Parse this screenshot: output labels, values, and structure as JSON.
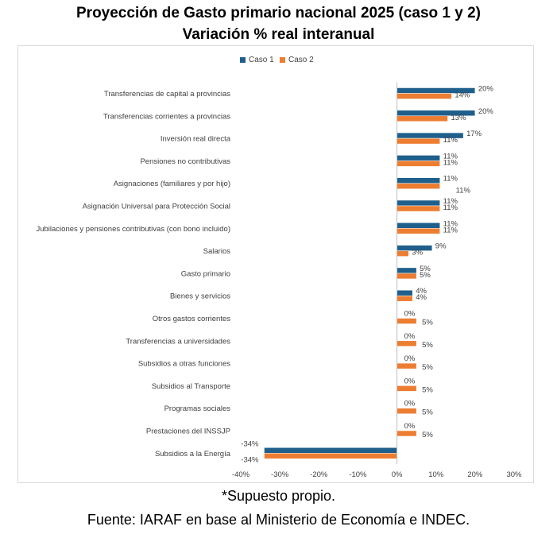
{
  "chart_data": {
    "type": "bar",
    "orientation": "horizontal",
    "title": "Proyección de Gasto primario nacional 2025 (caso 1 y 2)",
    "subtitle": "Variación % real interanual",
    "categories": [
      "Transferencias de capital a provincias",
      "Transferencias corrientes a provincias",
      "Inversión real directa",
      "Pensiones no contributivas",
      "Asignaciones (familiares y por hijo)",
      "Asignación Universal para Protección Social",
      "Jubilaciones y pensiones contributivas (con bono incluido)",
      "Salarios",
      "Gasto primario",
      "Bienes y servicios",
      "Otros gastos corrientes",
      "Transferencias a universidades",
      "Subsidios a otras funciones",
      "Subsidios al Transporte",
      "Programas sociales",
      "Prestaciones del INSSJP",
      "Subsidios a la Energía"
    ],
    "series": [
      {
        "name": "Caso 1",
        "color": "#1f5f8b",
        "values": [
          20,
          20,
          17,
          11,
          11,
          11,
          11,
          9,
          5,
          4,
          0,
          0,
          0,
          0,
          0,
          0,
          -34
        ],
        "labels": [
          "20%",
          "20%",
          "17%",
          "11%",
          "11%",
          "11%",
          "11%",
          "9%",
          "5%",
          "4%",
          "0%",
          "0%",
          "0%",
          "0%",
          "0%",
          "0%",
          "-34%"
        ]
      },
      {
        "name": "Caso 2",
        "color": "#ed7d31",
        "values": [
          14,
          13,
          11,
          11,
          11,
          11,
          11,
          3,
          5,
          4,
          5,
          5,
          5,
          5,
          5,
          5,
          -34
        ],
        "labels": [
          "14%",
          "13%",
          "11%",
          "11%",
          "11%",
          "11%",
          "11%",
          "3%",
          "5%",
          "4%",
          "5%",
          "5%",
          "5%",
          "5%",
          "5%",
          "5%",
          "-34%"
        ]
      }
    ],
    "xlim": [
      -40,
      30
    ],
    "xticks": [
      -40,
      -30,
      -20,
      -10,
      0,
      10,
      20,
      30
    ],
    "xtick_labels": [
      "-40%",
      "-30%",
      "-20%",
      "-10%",
      "0%",
      "10%",
      "20%",
      "30%"
    ],
    "legend_position": "top-right",
    "grid": false
  },
  "footnotes": {
    "note1": "*Supuesto propio.",
    "note2": "Fuente: IARAF en base al Ministerio de Economía e INDEC."
  }
}
